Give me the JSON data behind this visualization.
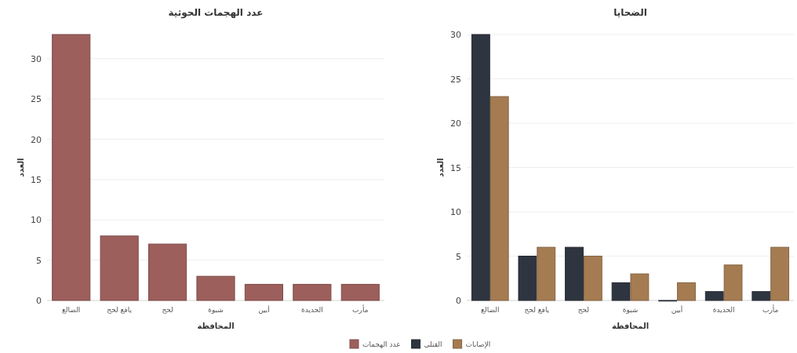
{
  "chart_data": [
    {
      "type": "bar",
      "title": "عدد الهجمات الحوثية",
      "xlabel": "المحافظة",
      "ylabel": "العدد",
      "categories": [
        "الضالع",
        "يافع لحج",
        "لحج",
        "شبوة",
        "أبين",
        "الحديدة",
        "مأرب"
      ],
      "series": [
        {
          "name": "عدد الهجمات",
          "color": "#9c5f5c",
          "values": [
            33,
            8,
            7,
            3,
            2,
            2,
            2
          ]
        }
      ],
      "ylim": [
        0,
        33
      ],
      "yticks": [
        0,
        5,
        10,
        15,
        20,
        25,
        30
      ],
      "grid": "y",
      "legend": "bottom"
    },
    {
      "type": "bar",
      "title": "الضحايا",
      "xlabel": "المحافظة",
      "ylabel": "العدد",
      "categories": [
        "الضالع",
        "يافع لحج",
        "لحج",
        "شبوة",
        "أبين",
        "الحديدة",
        "مأرب"
      ],
      "series": [
        {
          "name": "القتلى",
          "color": "#2e3540",
          "values": [
            30,
            5,
            6,
            2,
            0,
            1,
            1
          ]
        },
        {
          "name": "الإصابات",
          "color": "#a57c52",
          "values": [
            23,
            6,
            5,
            3,
            2,
            4,
            6
          ]
        }
      ],
      "ylim": [
        0,
        30
      ],
      "yticks": [
        0,
        5,
        10,
        15,
        20,
        25,
        30
      ],
      "grid": "y",
      "legend": "bottom"
    }
  ]
}
